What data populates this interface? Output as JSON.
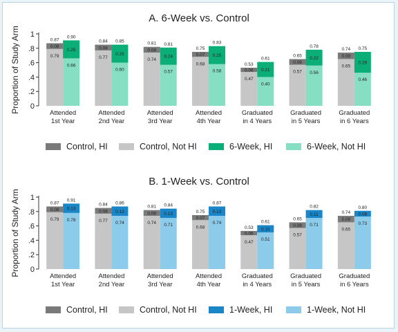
{
  "chart_data": [
    {
      "type": "bar",
      "title": "A. 6-Week vs. Control",
      "ylabel": "Proportion of Study Arm",
      "ylim": [
        0,
        1
      ],
      "yticks": [
        "0",
        ".2",
        ".4",
        ".6",
        ".8",
        "1"
      ],
      "categories": [
        [
          "Attended",
          "1st Year"
        ],
        [
          "Attended",
          "2nd Year"
        ],
        [
          "Attended",
          "3rd Year"
        ],
        [
          "Attended",
          "4th Year"
        ],
        [
          "Graduated",
          "in 4 Years"
        ],
        [
          "Graduated",
          "in 5 Years"
        ],
        [
          "Graduated",
          "in 6 Years"
        ]
      ],
      "legend": [
        "Control, HI",
        "Control, Not HI",
        "6-Week, HI",
        "6-Week, Not HI"
      ],
      "colors": {
        "control_hi": "#7a7a7a",
        "control_not_hi": "#c6c6c6",
        "treat_hi": "#0aae76",
        "treat_not_hi": "#86dfc2"
      },
      "control": {
        "not_hi": [
          0.79,
          0.77,
          0.74,
          0.68,
          0.47,
          0.57,
          0.65
        ],
        "hi": [
          0.08,
          0.08,
          0.08,
          0.07,
          0.06,
          0.08,
          0.09
        ],
        "total": [
          0.87,
          0.84,
          0.81,
          0.75,
          0.53,
          0.65,
          0.74
        ]
      },
      "treatment": {
        "not_hi": [
          0.66,
          0.6,
          0.57,
          0.58,
          0.4,
          0.56,
          0.46
        ],
        "hi": [
          0.25,
          0.25,
          0.24,
          0.25,
          0.21,
          0.22,
          0.29
        ],
        "total": [
          0.9,
          0.85,
          0.81,
          0.83,
          0.61,
          0.78,
          0.75
        ]
      }
    },
    {
      "type": "bar",
      "title": "B. 1-Week vs. Control",
      "ylabel": "Proportion of Study Arm",
      "ylim": [
        0,
        1
      ],
      "yticks": [
        "0",
        ".2",
        ".4",
        ".6",
        ".8",
        "1"
      ],
      "categories": [
        [
          "Attended",
          "1st Year"
        ],
        [
          "Attended",
          "2nd Year"
        ],
        [
          "Attended",
          "3rd Year"
        ],
        [
          "Attended",
          "4th Year"
        ],
        [
          "Graduated",
          "in 4 Years"
        ],
        [
          "Graduated",
          "in 5 Years"
        ],
        [
          "Graduated",
          "in 6 Years"
        ]
      ],
      "legend": [
        "Control, HI",
        "Control, Not HI",
        "1-Week, HI",
        "1-Week, Not HI"
      ],
      "colors": {
        "control_hi": "#7a7a7a",
        "control_not_hi": "#c6c6c6",
        "treat_hi": "#1a86c8",
        "treat_not_hi": "#8ccbea"
      },
      "control": {
        "not_hi": [
          0.79,
          0.77,
          0.74,
          0.68,
          0.47,
          0.57,
          0.65
        ],
        "hi": [
          0.08,
          0.08,
          0.08,
          0.07,
          0.06,
          0.08,
          0.09
        ],
        "total": [
          0.87,
          0.84,
          0.81,
          0.75,
          0.53,
          0.65,
          0.74
        ]
      },
      "treatment": {
        "not_hi": [
          0.78,
          0.74,
          0.71,
          0.74,
          0.51,
          0.71,
          0.73
        ],
        "hi": [
          0.13,
          0.13,
          0.13,
          0.13,
          0.1,
          0.11,
          0.08
        ],
        "total": [
          0.91,
          0.86,
          0.84,
          0.87,
          0.61,
          0.82,
          0.8
        ]
      }
    }
  ]
}
